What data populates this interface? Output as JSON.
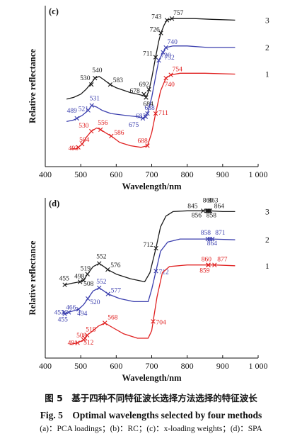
{
  "figure": {
    "caption_cn": "图 5　基于四种不同特征波长选择方法选择的特征波长",
    "caption_en": "Fig. 5　Optimal wavelengths selected by four methods",
    "caption_sub": "(a)：PCA loadings；(b)：RC；(c)：x-loading weights；(d)：SPA"
  },
  "chart_data": [
    {
      "type": "line",
      "panel_label": "(c)",
      "xlabel": "Wavelength/nm",
      "ylabel": "Relative reflectance",
      "xlim": [
        400,
        1000
      ],
      "xticks": [
        400,
        500,
        600,
        700,
        800,
        900,
        1000
      ],
      "xtick_labels": [
        "400",
        "500",
        "600",
        "700",
        "800",
        "900",
        "1 000"
      ],
      "grid": false,
      "series": [
        {
          "name": "3",
          "color": "#1a1a1a",
          "x": [
            460,
            480,
            500,
            515,
            530,
            540,
            552,
            565,
            583,
            600,
            640,
            660,
            678,
            684,
            692,
            700,
            711,
            720,
            726,
            735,
            743,
            757,
            780,
            820,
            870,
            935
          ],
          "y": [
            0.47,
            0.48,
            0.5,
            0.53,
            0.57,
            0.6,
            0.61,
            0.59,
            0.56,
            0.54,
            0.51,
            0.5,
            0.49,
            0.48,
            0.52,
            0.6,
            0.73,
            0.83,
            0.88,
            0.93,
            0.96,
            0.97,
            0.97,
            0.97,
            0.965,
            0.96
          ],
          "markers": [
            {
              "x": 530,
              "y": 0.56,
              "label": "530"
            },
            {
              "x": 540,
              "y": 0.6,
              "label": "540"
            },
            {
              "x": 583,
              "y": 0.56,
              "label": "583"
            },
            {
              "x": 678,
              "y": 0.5,
              "label": "678"
            },
            {
              "x": 684,
              "y": 0.48,
              "label": "684"
            },
            {
              "x": 692,
              "y": 0.53,
              "label": "692"
            },
            {
              "x": 711,
              "y": 0.73,
              "label": "711"
            },
            {
              "x": 726,
              "y": 0.88,
              "label": "726"
            },
            {
              "x": 743,
              "y": 0.96,
              "label": "743"
            },
            {
              "x": 757,
              "y": 0.97,
              "label": "757"
            }
          ]
        },
        {
          "name": "2",
          "color": "#3b3fae",
          "x": [
            460,
            480,
            489,
            505,
            521,
            531,
            545,
            560,
            585,
            620,
            660,
            675,
            683,
            688,
            700,
            712,
            720,
            732,
            740,
            760,
            800,
            860,
            935
          ],
          "y": [
            0.33,
            0.34,
            0.35,
            0.37,
            0.4,
            0.43,
            0.42,
            0.4,
            0.38,
            0.37,
            0.36,
            0.35,
            0.36,
            0.38,
            0.48,
            0.62,
            0.71,
            0.76,
            0.79,
            0.8,
            0.8,
            0.79,
            0.79
          ],
          "markers": [
            {
              "x": 489,
              "y": 0.35,
              "label": "489"
            },
            {
              "x": 521,
              "y": 0.4,
              "label": "521"
            },
            {
              "x": 531,
              "y": 0.43,
              "label": "531"
            },
            {
              "x": 675,
              "y": 0.35,
              "label": "675"
            },
            {
              "x": 683,
              "y": 0.36,
              "label": "683"
            },
            {
              "x": 688,
              "y": 0.38,
              "label": "688"
            },
            {
              "x": 720,
              "y": 0.71,
              "label": "720"
            },
            {
              "x": 732,
              "y": 0.76,
              "label": "732"
            },
            {
              "x": 740,
              "y": 0.79,
              "label": "740"
            }
          ]
        },
        {
          "name": "1",
          "color": "#e02020",
          "x": [
            470,
            485,
            493,
            504,
            515,
            530,
            545,
            556,
            570,
            586,
            610,
            640,
            670,
            688,
            700,
            711,
            725,
            740,
            754,
            780,
            850,
            935
          ],
          "y": [
            0.16,
            0.16,
            0.17,
            0.19,
            0.23,
            0.27,
            0.29,
            0.28,
            0.26,
            0.24,
            0.2,
            0.18,
            0.17,
            0.18,
            0.26,
            0.38,
            0.52,
            0.6,
            0.62,
            0.63,
            0.63,
            0.625
          ],
          "markers": [
            {
              "x": 493,
              "y": 0.17,
              "label": "493"
            },
            {
              "x": 504,
              "y": 0.19,
              "label": "504"
            },
            {
              "x": 530,
              "y": 0.27,
              "label": "530"
            },
            {
              "x": 556,
              "y": 0.28,
              "label": "556"
            },
            {
              "x": 586,
              "y": 0.24,
              "label": "586"
            },
            {
              "x": 688,
              "y": 0.18,
              "label": "688"
            },
            {
              "x": 711,
              "y": 0.38,
              "label": "711"
            },
            {
              "x": 740,
              "y": 0.6,
              "label": "740"
            },
            {
              "x": 754,
              "y": 0.62,
              "label": "754"
            }
          ]
        }
      ]
    },
    {
      "type": "line",
      "panel_label": "(d)",
      "xlabel": "Wavelength/nm",
      "ylabel": "Relative reflectance",
      "xlim": [
        400,
        1000
      ],
      "xticks": [
        400,
        500,
        600,
        700,
        800,
        900,
        1000
      ],
      "xtick_labels": [
        "400",
        "500",
        "600",
        "700",
        "800",
        "900",
        "1 000"
      ],
      "grid": false,
      "series": [
        {
          "name": "3",
          "color": "#1a1a1a",
          "x": [
            455,
            475,
            498,
            508,
            519,
            535,
            552,
            565,
            576,
            600,
            640,
            680,
            695,
            712,
            725,
            740,
            760,
            800,
            845,
            856,
            858,
            860,
            863,
            864,
            900,
            935
          ],
          "y": [
            0.48,
            0.49,
            0.5,
            0.51,
            0.55,
            0.6,
            0.62,
            0.6,
            0.58,
            0.55,
            0.52,
            0.5,
            0.56,
            0.72,
            0.86,
            0.93,
            0.96,
            0.965,
            0.965,
            0.965,
            0.965,
            0.965,
            0.965,
            0.965,
            0.96,
            0.96
          ],
          "markers": [
            {
              "x": 455,
              "y": 0.48,
              "label": "455"
            },
            {
              "x": 498,
              "y": 0.5,
              "label": "498"
            },
            {
              "x": 508,
              "y": 0.51,
              "label": "508"
            },
            {
              "x": 519,
              "y": 0.55,
              "label": "519"
            },
            {
              "x": 552,
              "y": 0.62,
              "label": "552"
            },
            {
              "x": 576,
              "y": 0.58,
              "label": "576"
            },
            {
              "x": 712,
              "y": 0.72,
              "label": "712"
            },
            {
              "x": 845,
              "y": 0.965,
              "label": "845"
            },
            {
              "x": 856,
              "y": 0.965,
              "label": "856"
            },
            {
              "x": 858,
              "y": 0.965,
              "label": "858"
            },
            {
              "x": 860,
              "y": 0.965,
              "label": "860"
            },
            {
              "x": 863,
              "y": 0.965,
              "label": "863"
            },
            {
              "x": 864,
              "y": 0.965,
              "label": "864"
            }
          ]
        },
        {
          "name": "2",
          "color": "#3b3fae",
          "x": [
            453,
            455,
            466,
            480,
            494,
            508,
            520,
            535,
            552,
            565,
            577,
            610,
            650,
            690,
            700,
            712,
            725,
            745,
            780,
            858,
            864,
            871,
            935
          ],
          "y": [
            0.3,
            0.29,
            0.3,
            0.31,
            0.32,
            0.35,
            0.39,
            0.44,
            0.46,
            0.44,
            0.42,
            0.39,
            0.37,
            0.37,
            0.45,
            0.57,
            0.7,
            0.76,
            0.78,
            0.78,
            0.78,
            0.78,
            0.775
          ],
          "markers": [
            {
              "x": 453,
              "y": 0.3,
              "label": "453"
            },
            {
              "x": 455,
              "y": 0.29,
              "label": "455"
            },
            {
              "x": 466,
              "y": 0.3,
              "label": "466"
            },
            {
              "x": 494,
              "y": 0.32,
              "label": "494"
            },
            {
              "x": 520,
              "y": 0.39,
              "label": "520"
            },
            {
              "x": 552,
              "y": 0.46,
              "label": "552"
            },
            {
              "x": 577,
              "y": 0.42,
              "label": "577"
            },
            {
              "x": 712,
              "y": 0.57,
              "label": "712"
            },
            {
              "x": 858,
              "y": 0.78,
              "label": "858"
            },
            {
              "x": 864,
              "y": 0.78,
              "label": "864"
            },
            {
              "x": 871,
              "y": 0.78,
              "label": "871"
            }
          ]
        },
        {
          "name": "1",
          "color": "#e02020",
          "x": [
            470,
            491,
            500,
            508,
            512,
            518,
            535,
            550,
            568,
            590,
            620,
            660,
            690,
            700,
            704,
            715,
            730,
            750,
            800,
            859,
            860,
            877,
            935
          ],
          "y": [
            0.09,
            0.1,
            0.11,
            0.12,
            0.13,
            0.15,
            0.18,
            0.21,
            0.23,
            0.2,
            0.16,
            0.13,
            0.13,
            0.18,
            0.24,
            0.4,
            0.56,
            0.6,
            0.61,
            0.61,
            0.61,
            0.61,
            0.605
          ],
          "markers": [
            {
              "x": 491,
              "y": 0.1,
              "label": "491"
            },
            {
              "x": 508,
              "y": 0.12,
              "label": "508"
            },
            {
              "x": 512,
              "y": 0.13,
              "label": "512"
            },
            {
              "x": 518,
              "y": 0.15,
              "label": "518"
            },
            {
              "x": 568,
              "y": 0.23,
              "label": "568"
            },
            {
              "x": 704,
              "y": 0.24,
              "label": "704"
            },
            {
              "x": 859,
              "y": 0.61,
              "label": "859"
            },
            {
              "x": 860,
              "y": 0.61,
              "label": "860"
            },
            {
              "x": 877,
              "y": 0.61,
              "label": "877"
            }
          ]
        }
      ]
    }
  ]
}
